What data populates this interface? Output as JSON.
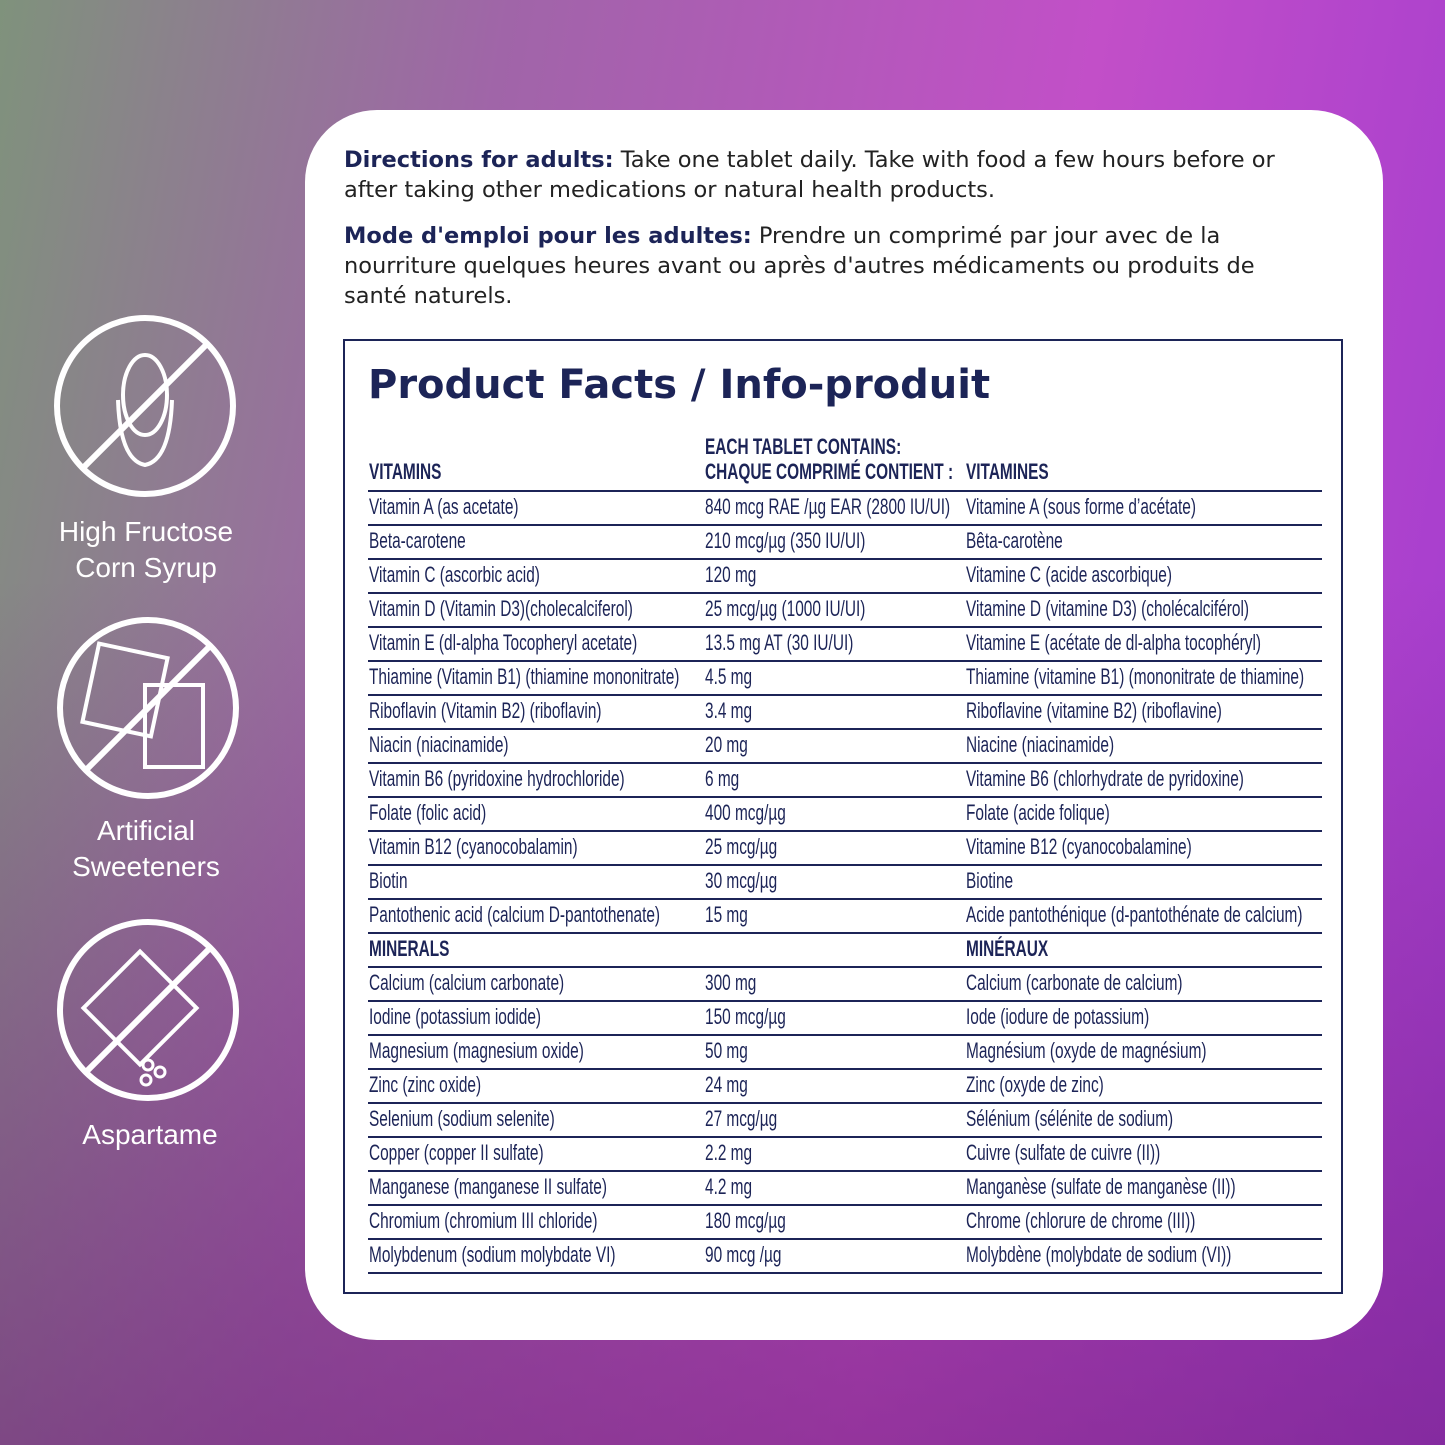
{
  "badges": [
    {
      "lines": [
        "High Fructose",
        "Corn Syrup"
      ]
    },
    {
      "lines": [
        "Artificial",
        "Sweeteners"
      ]
    },
    {
      "lines": [
        "Aspartame"
      ]
    }
  ],
  "directions": {
    "en": {
      "label": "Directions for adults:",
      "text": "Take one tablet daily. Take with food a few hours before or after taking other medications or natural health products."
    },
    "fr": {
      "label": "Mode d'emploi pour les adultes:",
      "text": "Prendre un comprimé par jour avec de la nourriture quelques heures avant ou après d'autres médicaments ou produits de santé naturels."
    }
  },
  "facts": {
    "title": "Product Facts / Info-produit",
    "header": {
      "vitamins": "VITAMINS",
      "contains": [
        "EACH TABLET CONTAINS:",
        "CHAQUE COMPRIMÉ CONTIENT :"
      ],
      "vitamines": "VITAMINES"
    },
    "vitamin_rows": [
      [
        "Vitamin A (as acetate)",
        "840 mcg RAE /µg EAR (2800 IU/UI)",
        "Vitamine A (sous forme d’acétate)"
      ],
      [
        "Beta-carotene",
        "210 mcg/µg (350 IU/UI)",
        "Bêta-carotène"
      ],
      [
        "Vitamin C (ascorbic acid)",
        "120 mg",
        "Vitamine C (acide ascorbique)"
      ],
      [
        "Vitamin D (Vitamin D3)(cholecalciferol)",
        "25 mcg/µg (1000 IU/UI)",
        "Vitamine D (vitamine D3) (cholécalciférol)"
      ],
      [
        "Vitamin E (dl-alpha Tocopheryl acetate)",
        "13.5 mg AT (30 IU/UI)",
        "Vitamine E (acétate de dl-alpha tocophéryl)"
      ],
      [
        "Thiamine (Vitamin B1) (thiamine mononitrate)",
        "4.5 mg",
        "Thiamine (vitamine B1) (mononitrate de thiamine)"
      ],
      [
        "Riboflavin (Vitamin B2) (riboflavin)",
        "3.4 mg",
        "Riboflavine (vitamine B2) (riboflavine)"
      ],
      [
        "Niacin (niacinamide)",
        "20 mg",
        "Niacine (niacinamide)"
      ],
      [
        "Vitamin B6 (pyridoxine hydrochloride)",
        "6 mg",
        "Vitamine B6 (chlorhydrate de pyridoxine)"
      ],
      [
        "Folate (folic acid)",
        "400 mcg/µg",
        "Folate (acide folique)"
      ],
      [
        "Vitamin B12 (cyanocobalamin)",
        "25 mcg/µg",
        "Vitamine B12 (cyanocobalamine)"
      ],
      [
        "Biotin",
        "30 mcg/µg",
        "Biotine"
      ],
      [
        "Pantothenic acid (calcium D-pantothenate)",
        "15 mg",
        "Acide pantothénique (d-pantothénate de calcium)"
      ]
    ],
    "minerals_heading": {
      "en": "MINERALS",
      "fr": "MINÉRAUX"
    },
    "mineral_rows": [
      [
        "Calcium (calcium carbonate)",
        "300 mg",
        "Calcium (carbonate de calcium)"
      ],
      [
        "Iodine (potassium iodide)",
        "150 mcg/µg",
        "Iode (iodure de potassium)"
      ],
      [
        "Magnesium (magnesium oxide)",
        "50 mg",
        "Magnésium (oxyde de magnésium)"
      ],
      [
        "Zinc (zinc oxide)",
        "24 mg",
        "Zinc (oxyde de zinc)"
      ],
      [
        "Selenium (sodium selenite)",
        "27 mcg/µg",
        "Sélénium (sélénite de sodium)"
      ],
      [
        "Copper (copper II sulfate)",
        "2.2 mg",
        "Cuivre (sulfate de cuivre (II))"
      ],
      [
        "Manganese (manganese II sulfate)",
        "4.2 mg",
        "Manganèse (sulfate de manganèse (II))"
      ],
      [
        "Chromium (chromium III chloride)",
        "180 mcg/µg",
        "Chrome (chlorure de chrome (III))"
      ],
      [
        "Molybdenum (sodium molybdate VI)",
        "90 mcg /µg",
        "Molybdène (molybdate de sodium (VI))"
      ]
    ]
  }
}
